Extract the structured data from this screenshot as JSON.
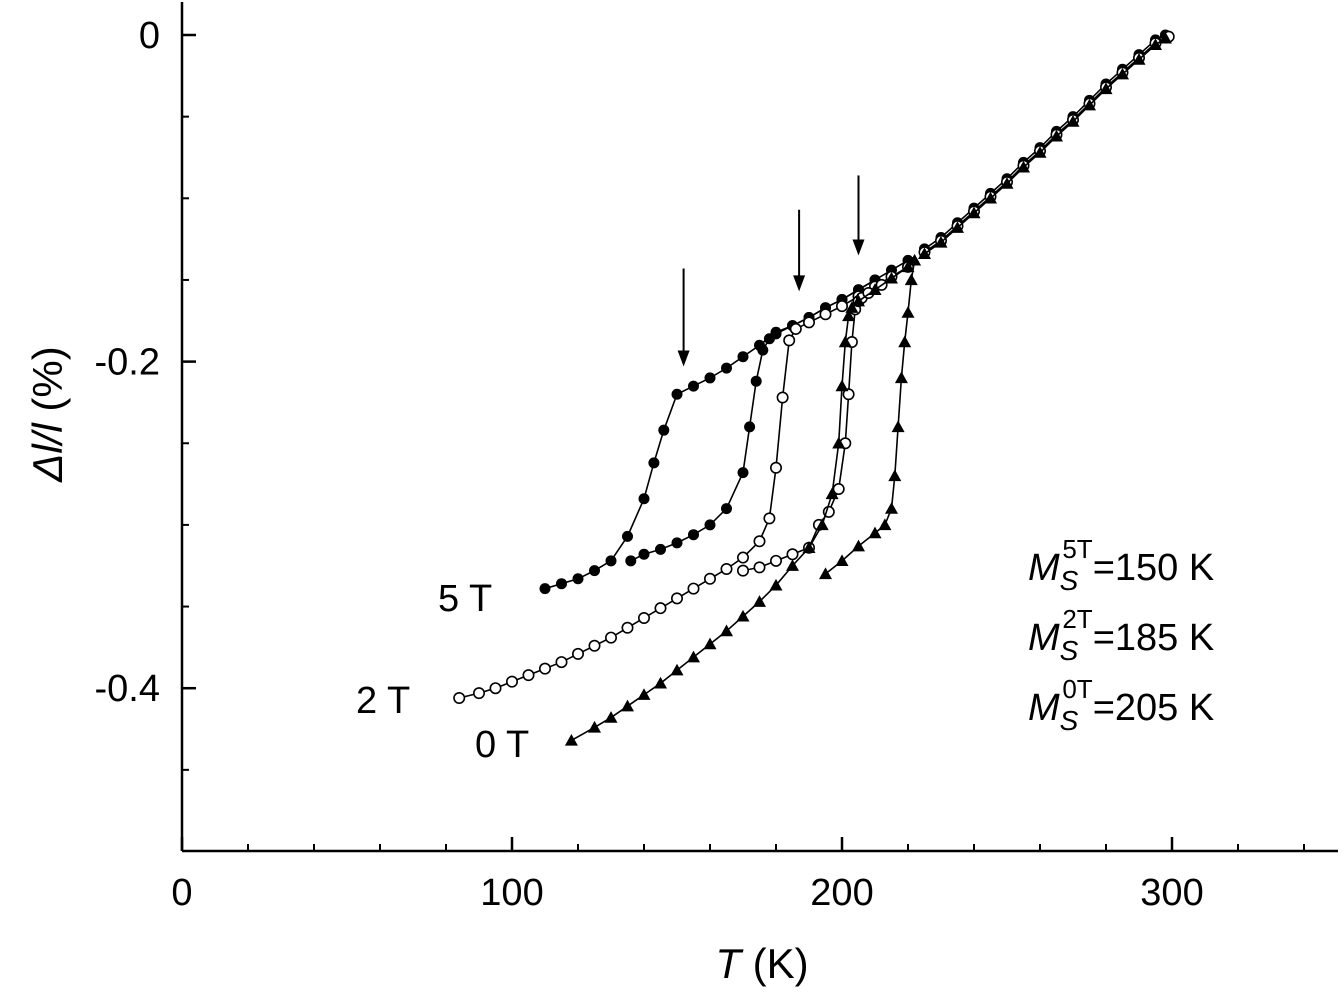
{
  "chart_data": {
    "type": "scatter",
    "xlabel": {
      "symbol": "T",
      "unit": " (K)"
    },
    "ylabel": {
      "symbol": "Δl/l",
      "unit": " (%)"
    },
    "xlim": [
      0,
      350
    ],
    "ylim": [
      -0.5,
      0.02
    ],
    "x_ticks": [
      0,
      100,
      200,
      300
    ],
    "x_tick_labels": [
      "0",
      "100",
      "200",
      "300"
    ],
    "x_minor_step": 20,
    "y_ticks": [
      0,
      -0.2,
      -0.4
    ],
    "y_tick_labels": [
      "0",
      "-0.2",
      "-0.4"
    ],
    "y_minor_step": 0.05,
    "grid": false,
    "legend": "none",
    "series": [
      {
        "name": "5 T",
        "marker": "filled-circle",
        "cooling": {
          "x": [
            110,
            115,
            120,
            125,
            130,
            135,
            140,
            143,
            146,
            150,
            155,
            160,
            165,
            170,
            175,
            180,
            185,
            190,
            195,
            200,
            205,
            210,
            215,
            220
          ],
          "y": [
            -0.339,
            -0.336,
            -0.333,
            -0.328,
            -0.322,
            -0.307,
            -0.284,
            -0.262,
            -0.242,
            -0.22,
            -0.215,
            -0.21,
            -0.204,
            -0.197,
            -0.19,
            -0.182,
            -0.178,
            -0.173,
            -0.167,
            -0.162,
            -0.156,
            -0.15,
            -0.144,
            -0.138
          ]
        },
        "heating": {
          "x": [
            136,
            140,
            145,
            150,
            155,
            160,
            165,
            170,
            172,
            174,
            176,
            178,
            180,
            185,
            190,
            195,
            200,
            205,
            210
          ],
          "y": [
            -0.322,
            -0.318,
            -0.315,
            -0.311,
            -0.306,
            -0.3,
            -0.29,
            -0.268,
            -0.24,
            -0.212,
            -0.193,
            -0.186,
            -0.183,
            -0.178,
            -0.173,
            -0.167,
            -0.162,
            -0.156,
            -0.15
          ]
        },
        "tail": {
          "x": [
            225,
            230,
            235,
            240,
            245,
            250,
            255,
            260,
            265,
            270,
            275,
            280,
            285,
            290,
            295,
            298
          ],
          "y": [
            -0.131,
            -0.124,
            -0.115,
            -0.106,
            -0.097,
            -0.088,
            -0.078,
            -0.069,
            -0.059,
            -0.05,
            -0.04,
            -0.03,
            -0.021,
            -0.012,
            -0.003,
            0.0
          ]
        }
      },
      {
        "name": "2 T",
        "marker": "open-circle",
        "cooling": {
          "x": [
            84,
            90,
            95,
            100,
            105,
            110,
            115,
            120,
            125,
            130,
            135,
            140,
            145,
            150,
            155,
            160,
            165,
            170,
            175,
            178,
            180,
            182,
            184,
            186,
            190,
            195,
            200,
            205,
            210,
            215,
            220
          ],
          "y": [
            -0.406,
            -0.403,
            -0.4,
            -0.396,
            -0.392,
            -0.388,
            -0.384,
            -0.379,
            -0.374,
            -0.369,
            -0.363,
            -0.357,
            -0.351,
            -0.345,
            -0.339,
            -0.333,
            -0.327,
            -0.32,
            -0.31,
            -0.296,
            -0.265,
            -0.222,
            -0.187,
            -0.18,
            -0.176,
            -0.171,
            -0.166,
            -0.16,
            -0.154,
            -0.148,
            -0.142
          ]
        },
        "heating": {
          "x": [
            170,
            175,
            180,
            185,
            190,
            193,
            196,
            199,
            201,
            202,
            203,
            204,
            205,
            206,
            208,
            212
          ],
          "y": [
            -0.328,
            -0.326,
            -0.322,
            -0.318,
            -0.314,
            -0.3,
            -0.292,
            -0.278,
            -0.25,
            -0.22,
            -0.188,
            -0.168,
            -0.163,
            -0.161,
            -0.158,
            -0.153
          ]
        },
        "tail": {
          "x": [
            225,
            230,
            235,
            240,
            245,
            250,
            255,
            260,
            265,
            270,
            275,
            280,
            285,
            290,
            295,
            299
          ],
          "y": [
            -0.133,
            -0.126,
            -0.117,
            -0.108,
            -0.099,
            -0.09,
            -0.08,
            -0.071,
            -0.061,
            -0.052,
            -0.042,
            -0.032,
            -0.023,
            -0.014,
            -0.005,
            -0.001
          ]
        }
      },
      {
        "name": "0 T",
        "marker": "filled-triangle",
        "cooling": {
          "x": [
            118,
            125,
            130,
            135,
            140,
            145,
            150,
            155,
            160,
            165,
            170,
            175,
            180,
            185,
            190,
            194,
            197,
            199,
            200,
            201,
            202,
            203,
            205,
            210,
            215,
            220
          ],
          "y": [
            -0.432,
            -0.424,
            -0.418,
            -0.411,
            -0.404,
            -0.397,
            -0.389,
            -0.381,
            -0.373,
            -0.365,
            -0.356,
            -0.347,
            -0.337,
            -0.325,
            -0.314,
            -0.3,
            -0.281,
            -0.25,
            -0.215,
            -0.188,
            -0.172,
            -0.167,
            -0.163,
            -0.156,
            -0.149,
            -0.142
          ]
        },
        "heating": {
          "x": [
            195,
            200,
            205,
            210,
            213,
            215,
            216,
            217,
            218,
            219,
            220,
            221,
            222
          ],
          "y": [
            -0.33,
            -0.322,
            -0.313,
            -0.305,
            -0.3,
            -0.29,
            -0.27,
            -0.24,
            -0.21,
            -0.188,
            -0.17,
            -0.15,
            -0.138
          ]
        },
        "tail": {
          "x": [
            225,
            230,
            235,
            240,
            245,
            250,
            255,
            260,
            265,
            270,
            275,
            280,
            285,
            290,
            295,
            298
          ],
          "y": [
            -0.134,
            -0.127,
            -0.118,
            -0.109,
            -0.1,
            -0.091,
            -0.081,
            -0.072,
            -0.062,
            -0.053,
            -0.043,
            -0.033,
            -0.024,
            -0.015,
            -0.006,
            -0.002
          ]
        }
      }
    ],
    "arrows": [
      {
        "x": 152,
        "y_from": -0.143,
        "y_to": -0.203
      },
      {
        "x": 187,
        "y_from": -0.107,
        "y_to": -0.157
      },
      {
        "x": 205,
        "y_from": -0.086,
        "y_to": -0.135
      }
    ],
    "annotations": [
      {
        "base": "M",
        "sub": "S",
        "sup": "5T",
        "rest": "=150 K"
      },
      {
        "base": "M",
        "sub": "S",
        "sup": "2T",
        "rest": "=185 K"
      },
      {
        "base": "M",
        "sub": "S",
        "sup": "0T",
        "rest": "=205 K"
      }
    ]
  }
}
